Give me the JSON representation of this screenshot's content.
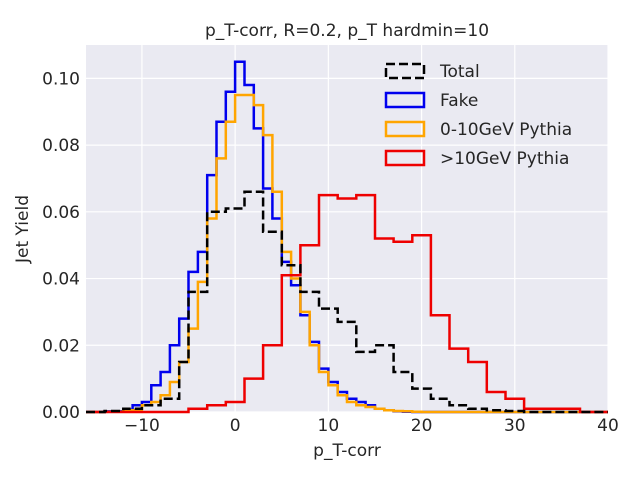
{
  "chart_data": {
    "type": "histogram",
    "title": "p_T-corr, R=0.2, p_T hardmin=10",
    "xlabel": "p_T-corr",
    "ylabel": "Jet Yield",
    "xlim": [
      -16,
      40
    ],
    "ylim": [
      0,
      0.11
    ],
    "xticks": [
      -10,
      0,
      10,
      20,
      30,
      40
    ],
    "xtick_labels": [
      "−10",
      "0",
      "10",
      "20",
      "30",
      "40"
    ],
    "yticks": [
      0.0,
      0.02,
      0.04,
      0.06,
      0.08,
      0.1
    ],
    "ytick_labels": [
      "0.00",
      "0.02",
      "0.04",
      "0.06",
      "0.08",
      "0.10"
    ],
    "grid": true,
    "background": "#eaeaf2",
    "legend_position": "top-right",
    "bins": [
      -16,
      -15,
      -14,
      -13,
      -12,
      -11,
      -10,
      -9,
      -8,
      -7,
      -6,
      -5,
      -4,
      -3,
      -2,
      -1,
      0,
      1,
      2,
      3,
      4,
      5,
      6,
      7,
      8,
      9,
      10,
      11,
      12,
      13,
      14,
      15,
      16,
      17,
      18,
      19,
      20,
      21,
      22,
      23,
      24,
      25,
      26,
      27,
      28,
      29,
      30,
      31,
      32,
      33,
      34,
      35,
      36,
      37,
      38,
      39,
      40
    ],
    "series": [
      {
        "name": "Total",
        "color": "#000000",
        "dashed": true,
        "bin_edges": [
          -16,
          -14,
          -12,
          -10,
          -8,
          -6,
          -5,
          -3,
          -1,
          1,
          3,
          5,
          7,
          9,
          11,
          13,
          15,
          17,
          19,
          21,
          23,
          25,
          27,
          29,
          31,
          40
        ],
        "values": [
          0,
          0.0003,
          0.001,
          0.002,
          0.004,
          0.015,
          0.036,
          0.06,
          0.061,
          0.066,
          0.054,
          0.044,
          0.036,
          0.031,
          0.027,
          0.018,
          0.02,
          0.012,
          0.007,
          0.004,
          0.002,
          0.001,
          0.0005,
          0.0003,
          0
        ]
      },
      {
        "name": "Fake",
        "color": "#0000ee",
        "dashed": false,
        "bin_edges": [
          -16,
          -14,
          -12,
          -11,
          -10,
          -9,
          -8,
          -7,
          -6,
          -5,
          -4,
          -3,
          -2,
          -1,
          0,
          1,
          2,
          3,
          4,
          5,
          6,
          7,
          8,
          9,
          10,
          11,
          12,
          13,
          14,
          15,
          16,
          17,
          18,
          19,
          20,
          21,
          22,
          23,
          24,
          25,
          26,
          27,
          28,
          29,
          30,
          31,
          32,
          33,
          34,
          35,
          36,
          37,
          38,
          39,
          40
        ],
        "values": [
          0,
          0.0002,
          0.0007,
          0.002,
          0.003,
          0.008,
          0.012,
          0.02,
          0.028,
          0.042,
          0.048,
          0.071,
          0.087,
          0.096,
          0.105,
          0.098,
          0.085,
          0.067,
          0.058,
          0.045,
          0.038,
          0.029,
          0.021,
          0.013,
          0.009,
          0.006,
          0.004,
          0.003,
          0.002,
          0.001,
          0.0005,
          0.0002,
          0.0001,
          0,
          0,
          0,
          0,
          0,
          0,
          0,
          0,
          0,
          0,
          0,
          0,
          0,
          0,
          0,
          0,
          0,
          0,
          0,
          0,
          0
        ]
      },
      {
        "name": "0-10GeV Pythia",
        "color": "#ffa500",
        "dashed": false,
        "bin_edges": [
          -16,
          -14,
          -12,
          -10,
          -9,
          -8,
          -7,
          -6,
          -5,
          -4,
          -3,
          -2,
          -1,
          0,
          1,
          2,
          3,
          4,
          5,
          6,
          7,
          8,
          9,
          10,
          11,
          12,
          13,
          14,
          15,
          16,
          17,
          18,
          19,
          20,
          21,
          22,
          23,
          24,
          25,
          26,
          27,
          28,
          29,
          30,
          31,
          32,
          33,
          34,
          35,
          36,
          37,
          38,
          39,
          40
        ],
        "values": [
          0,
          0.0001,
          0.0005,
          0.002,
          0.003,
          0.005,
          0.009,
          0.015,
          0.025,
          0.039,
          0.058,
          0.076,
          0.087,
          0.095,
          0.095,
          0.092,
          0.083,
          0.066,
          0.048,
          0.04,
          0.03,
          0.02,
          0.012,
          0.008,
          0.005,
          0.003,
          0.002,
          0.0015,
          0.001,
          0.0005,
          0.0003,
          0.0002,
          0.0001,
          0,
          0,
          0,
          0,
          0,
          0,
          0,
          0,
          0,
          0,
          0,
          0,
          0,
          0,
          0,
          0,
          0,
          0,
          0,
          0
        ]
      },
      {
        "name": ">10GeV Pythia",
        "color": "#ee0000",
        "dashed": false,
        "bin_edges": [
          -16,
          -5,
          -3,
          -1,
          1,
          3,
          5,
          7,
          9,
          11,
          13,
          15,
          17,
          19,
          21,
          23,
          25,
          27,
          29,
          31,
          33,
          35,
          37,
          40
        ],
        "values": [
          0,
          0.001,
          0.002,
          0.003,
          0.01,
          0.02,
          0.041,
          0.05,
          0.065,
          0.064,
          0.065,
          0.052,
          0.051,
          0.053,
          0.029,
          0.019,
          0.015,
          0.006,
          0.004,
          0.001,
          0.001,
          0.001,
          0
        ]
      }
    ]
  }
}
